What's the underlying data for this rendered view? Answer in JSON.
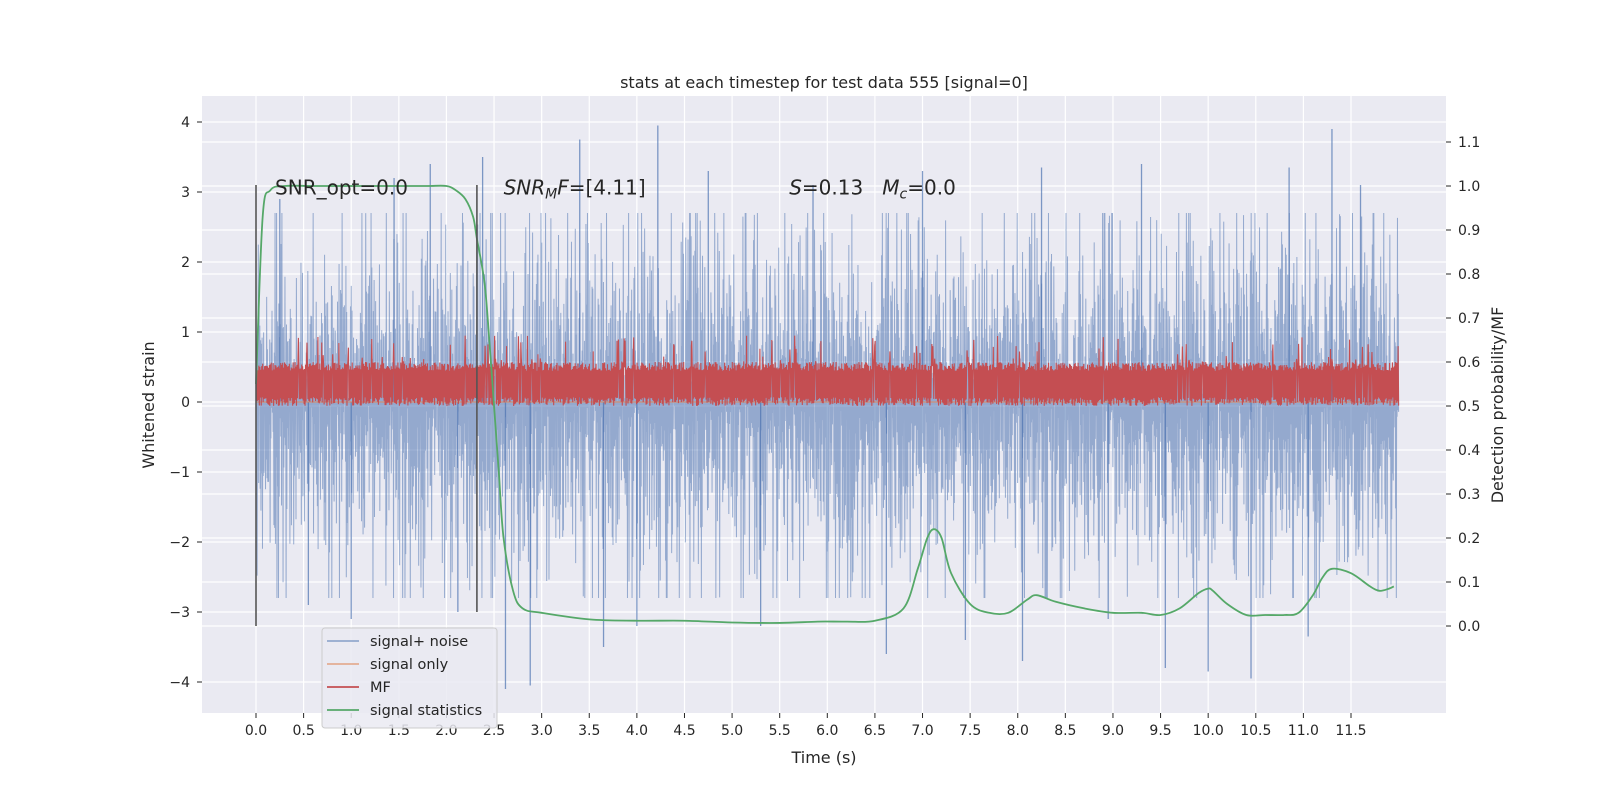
{
  "chart_data": {
    "type": "line",
    "title": "stats at each timestep for test data 555 [signal=0]",
    "xlabel": "Time (s)",
    "ylabel": "Whitened strain",
    "y2label": "Detection probability/MF",
    "xlim": [
      -0.58,
      12.58
    ],
    "ylim": [
      -4.5,
      4.35
    ],
    "y2lim": [
      -0.2,
      1.2
    ],
    "xticks": [
      0.0,
      0.5,
      1.0,
      1.5,
      2.0,
      2.5,
      3.0,
      3.5,
      4.0,
      4.5,
      5.0,
      5.5,
      6.0,
      6.5,
      7.0,
      7.5,
      8.0,
      8.5,
      9.0,
      9.5,
      10.0,
      10.5,
      11.0,
      11.5
    ],
    "xtick_labels": [
      "0.0",
      "0.5",
      "1.0",
      "1.5",
      "2.0",
      "2.5",
      "3.0",
      "3.5",
      "4.0",
      "4.5",
      "5.0",
      "5.5",
      "6.0",
      "6.5",
      "7.0",
      "7.5",
      "8.0",
      "8.5",
      "9.0",
      "9.5",
      "10.0",
      "10.5",
      "11.0",
      "11.5"
    ],
    "yticks": [
      -4,
      -3,
      -2,
      -1,
      0,
      1,
      2,
      3,
      4
    ],
    "ytick_labels": [
      "−4",
      "−3",
      "−2",
      "−1",
      "0",
      "1",
      "2",
      "3",
      "4"
    ],
    "y2ticks": [
      0.0,
      0.1,
      0.2,
      0.3,
      0.4,
      0.5,
      0.6,
      0.7,
      0.8,
      0.9,
      1.0,
      1.1
    ],
    "y2tick_labels": [
      "0.0",
      "0.1",
      "0.2",
      "0.3",
      "0.4",
      "0.5",
      "0.6",
      "0.7",
      "0.8",
      "0.9",
      "1.0",
      "1.1"
    ],
    "grid": true,
    "legend_position": "lower-left",
    "annotations": [
      {
        "text": "SNR_opt=0.0",
        "x": 0.2,
        "y": 3.05
      },
      {
        "text": "SNR_MF=[4.11]",
        "x": 2.6,
        "y": 3.05
      },
      {
        "text": "S=0.13   M_c=0.0",
        "x": 5.6,
        "y": 3.05
      }
    ],
    "vlines": [
      {
        "x": 0.0,
        "ymin": -3.2,
        "ymax": 3.1
      },
      {
        "x": 2.32,
        "ymin": -3.0,
        "ymax": 3.1
      }
    ],
    "series": [
      {
        "name": "signal+ noise",
        "axis": "left",
        "color": "#4c72b0",
        "opacity": 0.55,
        "x_range": [
          0.0,
          12.0
        ],
        "samples": 3000,
        "band": [
          -2.0,
          2.0
        ],
        "spikes": [
          {
            "x": 0.25,
            "y": 2.9
          },
          {
            "x": 0.55,
            "y": -2.9
          },
          {
            "x": 1.0,
            "y": -3.1
          },
          {
            "x": 1.45,
            "y": 3.2
          },
          {
            "x": 1.83,
            "y": 3.4
          },
          {
            "x": 2.12,
            "y": -3.0
          },
          {
            "x": 2.38,
            "y": 3.5
          },
          {
            "x": 2.62,
            "y": -4.1
          },
          {
            "x": 2.88,
            "y": -4.05
          },
          {
            "x": 3.4,
            "y": 3.75
          },
          {
            "x": 3.65,
            "y": -3.5
          },
          {
            "x": 4.0,
            "y": -3.2
          },
          {
            "x": 4.22,
            "y": 3.95
          },
          {
            "x": 4.75,
            "y": 3.3
          },
          {
            "x": 5.3,
            "y": -3.2
          },
          {
            "x": 5.85,
            "y": 3.1
          },
          {
            "x": 6.62,
            "y": -3.6
          },
          {
            "x": 7.0,
            "y": 3.3
          },
          {
            "x": 7.45,
            "y": -3.4
          },
          {
            "x": 8.05,
            "y": -3.7
          },
          {
            "x": 8.25,
            "y": 3.35
          },
          {
            "x": 8.95,
            "y": -3.1
          },
          {
            "x": 9.3,
            "y": 3.4
          },
          {
            "x": 9.55,
            "y": -3.8
          },
          {
            "x": 10.0,
            "y": -3.85
          },
          {
            "x": 10.45,
            "y": -3.95
          },
          {
            "x": 10.85,
            "y": 3.35
          },
          {
            "x": 11.05,
            "y": -3.35
          },
          {
            "x": 11.3,
            "y": 3.9
          },
          {
            "x": 11.6,
            "y": 3.1
          }
        ]
      },
      {
        "name": "signal only",
        "axis": "left",
        "color": "#dd8452",
        "opacity": 0.6,
        "x": [
          0.0,
          12.0
        ],
        "y": [
          0.0,
          0.0
        ]
      },
      {
        "name": "MF",
        "axis": "right",
        "color": "#c44e52",
        "x_range": [
          0.0,
          12.0
        ],
        "samples": 2400,
        "band": [
          0.5,
          0.6
        ],
        "peak": 0.66
      },
      {
        "name": "signal statistics",
        "axis": "right",
        "color": "#55a868",
        "x": [
          0.0,
          0.07,
          0.15,
          0.3,
          0.6,
          1.0,
          1.5,
          1.8,
          2.0,
          2.1,
          2.2,
          2.28,
          2.32,
          2.4,
          2.45,
          2.5,
          2.55,
          2.6,
          2.7,
          2.8,
          3.0,
          3.5,
          4.0,
          4.5,
          5.0,
          5.5,
          5.9,
          6.2,
          6.5,
          6.8,
          6.95,
          7.05,
          7.12,
          7.2,
          7.3,
          7.5,
          7.7,
          7.9,
          8.1,
          8.2,
          8.4,
          8.7,
          9.0,
          9.3,
          9.5,
          9.7,
          9.9,
          10.0,
          10.05,
          10.2,
          10.4,
          10.6,
          10.8,
          10.95,
          11.1,
          11.2,
          11.3,
          11.5,
          11.7,
          11.8,
          11.9,
          11.95
        ],
        "y": [
          0.55,
          0.93,
          0.99,
          1.0,
          1.0,
          1.0,
          1.0,
          1.0,
          1.0,
          0.99,
          0.97,
          0.93,
          0.88,
          0.78,
          0.65,
          0.5,
          0.35,
          0.2,
          0.08,
          0.04,
          0.03,
          0.015,
          0.012,
          0.012,
          0.008,
          0.007,
          0.01,
          0.01,
          0.012,
          0.04,
          0.13,
          0.2,
          0.22,
          0.2,
          0.12,
          0.05,
          0.03,
          0.03,
          0.06,
          0.07,
          0.055,
          0.04,
          0.03,
          0.03,
          0.025,
          0.04,
          0.075,
          0.085,
          0.08,
          0.05,
          0.025,
          0.025,
          0.025,
          0.03,
          0.07,
          0.11,
          0.13,
          0.12,
          0.09,
          0.08,
          0.085,
          0.09
        ]
      }
    ]
  }
}
